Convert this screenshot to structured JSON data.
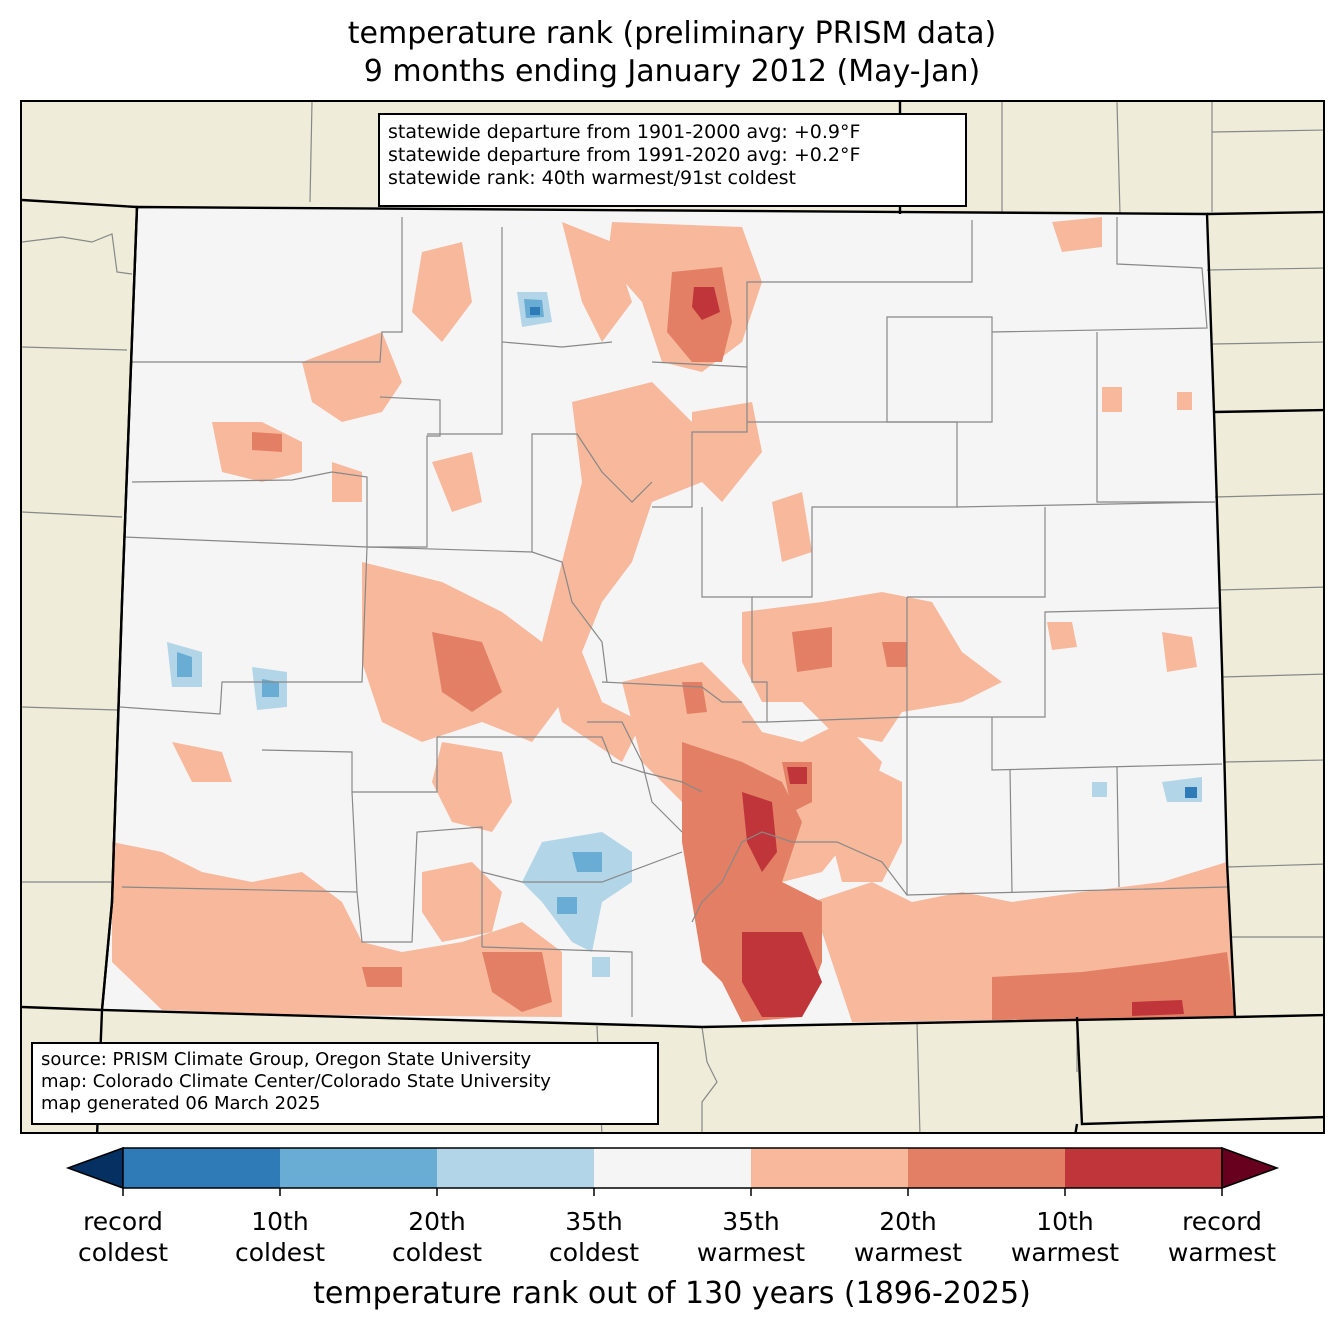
{
  "title": {
    "line1": "temperature rank (preliminary PRISM data)",
    "line2": "9 months ending January 2012 (May-Jan)"
  },
  "stats_box": {
    "line1": "statewide departure from 1901-2000 avg: +0.9°F",
    "line2": "statewide departure from 1991-2020 avg: +0.2°F",
    "line3": "statewide rank: 40th warmest/91st coldest"
  },
  "source_box": {
    "line1": "source: PRISM Climate Group, Oregon State University",
    "line2": "map: Colorado Climate Center/Colorado State University",
    "line3": "map generated 06 March 2025"
  },
  "colorbar": {
    "title": "temperature rank out of 130 years (1896-2025)",
    "colors": [
      "#053061",
      "#2f7bb8",
      "#6aadd4",
      "#b2d5e7",
      "#f5f5f5",
      "#f7b89c",
      "#e27f64",
      "#c0353a",
      "#67001f"
    ],
    "ticks": [
      {
        "line1": "record",
        "line2": "coldest"
      },
      {
        "line1": "10th",
        "line2": "coldest"
      },
      {
        "line1": "20th",
        "line2": "coldest"
      },
      {
        "line1": "35th",
        "line2": "coldest"
      },
      {
        "line1": "35th",
        "line2": "warmest"
      },
      {
        "line1": "20th",
        "line2": "warmest"
      },
      {
        "line1": "10th",
        "line2": "warmest"
      },
      {
        "line1": "record",
        "line2": "warmest"
      }
    ]
  },
  "map_colors": {
    "land_outside": "#efedd9",
    "state_fill": "#f5f5f5",
    "warm_20": "#f7b89c",
    "warm_10": "#e27f64",
    "warm_record": "#c0353a",
    "cold_35": "#b2d5e7",
    "cold_20": "#6aadd4",
    "cold_10": "#2f7bb8"
  }
}
